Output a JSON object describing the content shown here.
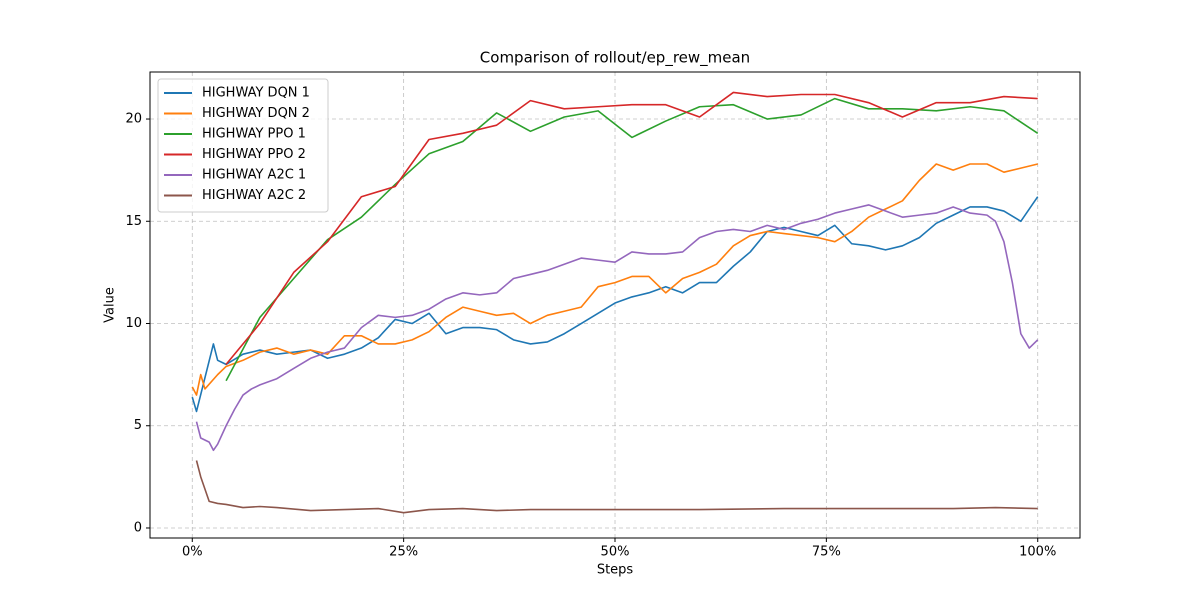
{
  "chart_data": {
    "type": "line",
    "title": "Comparison of rollout/ep_rew_mean",
    "x_label": "Steps",
    "y_label": "Value",
    "xlim": [
      -5,
      105
    ],
    "ylim": [
      -0.49,
      22.3
    ],
    "xticks": [
      {
        "value": 0,
        "label": "0%"
      },
      {
        "value": 25,
        "label": "25%"
      },
      {
        "value": 50,
        "label": "50%"
      },
      {
        "value": 75,
        "label": "75%"
      },
      {
        "value": 100,
        "label": "100%"
      }
    ],
    "yticks": [
      0,
      5,
      10,
      15,
      20
    ],
    "grid": true,
    "legend": "upper-left",
    "series": [
      {
        "name": "HIGHWAY DQN 1",
        "color": "#1f77b4",
        "x": [
          0,
          0.5,
          2.5,
          3,
          4,
          6,
          8,
          10,
          12,
          14,
          16,
          18,
          20,
          22,
          24,
          26,
          28,
          30,
          32,
          34,
          36,
          38,
          40,
          42,
          44,
          46,
          48,
          50,
          52,
          54,
          56,
          58,
          60,
          62,
          64,
          66,
          68,
          70,
          72,
          74,
          76,
          78,
          80,
          82,
          84,
          86,
          88,
          90,
          92,
          94,
          96,
          98,
          100
        ],
        "values": [
          6.4,
          5.7,
          9.0,
          8.2,
          8.0,
          8.5,
          8.7,
          8.5,
          8.6,
          8.7,
          8.3,
          8.5,
          8.8,
          9.3,
          10.2,
          10.0,
          10.5,
          9.5,
          9.8,
          9.8,
          9.7,
          9.2,
          9.0,
          9.1,
          9.5,
          10.0,
          10.5,
          11.0,
          11.3,
          11.5,
          11.8,
          11.5,
          12.0,
          12.0,
          12.8,
          13.5,
          14.5,
          14.7,
          14.5,
          14.3,
          14.8,
          13.9,
          13.8,
          13.6,
          13.8,
          14.2,
          14.9,
          15.3,
          15.7,
          15.7,
          15.5,
          15.0,
          16.2
        ]
      },
      {
        "name": "HIGHWAY DQN 2",
        "color": "#ff7f0e",
        "x": [
          0,
          0.5,
          1,
          1.5,
          3,
          4,
          6,
          8,
          10,
          12,
          14,
          16,
          18,
          20,
          22,
          24,
          26,
          28,
          30,
          32,
          34,
          36,
          38,
          40,
          42,
          44,
          46,
          48,
          50,
          52,
          54,
          56,
          58,
          60,
          62,
          64,
          66,
          68,
          70,
          72,
          74,
          76,
          78,
          80,
          82,
          84,
          86,
          88,
          90,
          92,
          94,
          96,
          98,
          100
        ],
        "values": [
          6.9,
          6.5,
          7.5,
          6.8,
          7.5,
          7.9,
          8.2,
          8.6,
          8.8,
          8.5,
          8.7,
          8.5,
          9.4,
          9.4,
          9.0,
          9.0,
          9.2,
          9.6,
          10.3,
          10.8,
          10.6,
          10.4,
          10.5,
          10.0,
          10.4,
          10.6,
          10.8,
          11.8,
          12.0,
          12.3,
          12.3,
          11.5,
          12.2,
          12.5,
          12.9,
          13.8,
          14.3,
          14.5,
          14.4,
          14.3,
          14.2,
          14.0,
          14.5,
          15.2,
          15.6,
          16.0,
          17.0,
          17.8,
          17.5,
          17.8,
          17.8,
          17.4,
          17.6,
          17.8
        ]
      },
      {
        "name": "HIGHWAY PPO 1",
        "color": "#2ca02c",
        "x": [
          4,
          8,
          12,
          16,
          20,
          24,
          28,
          32,
          36,
          40,
          44,
          48,
          52,
          56,
          60,
          64,
          68,
          72,
          76,
          80,
          84,
          88,
          92,
          96,
          100
        ],
        "values": [
          7.2,
          10.3,
          12.2,
          14.1,
          15.2,
          16.8,
          18.3,
          18.9,
          20.3,
          19.4,
          20.1,
          20.4,
          19.1,
          19.9,
          20.6,
          20.7,
          20.0,
          20.2,
          21.0,
          20.5,
          20.5,
          20.4,
          20.6,
          20.4,
          19.3
        ]
      },
      {
        "name": "HIGHWAY PPO 2",
        "color": "#d62728",
        "x": [
          4,
          8,
          12,
          16,
          20,
          24,
          28,
          32,
          36,
          40,
          44,
          48,
          52,
          56,
          60,
          64,
          68,
          72,
          76,
          80,
          84,
          88,
          92,
          96,
          100
        ],
        "values": [
          8.0,
          10.0,
          12.5,
          14.0,
          16.2,
          16.7,
          19.0,
          19.3,
          19.7,
          20.9,
          20.5,
          20.6,
          20.7,
          20.7,
          20.1,
          21.3,
          21.1,
          21.2,
          21.2,
          20.8,
          20.1,
          20.8,
          20.8,
          21.1,
          21.0
        ]
      },
      {
        "name": "HIGHWAY A2C 1",
        "color": "#9467bd",
        "x": [
          0.5,
          1,
          2,
          2.5,
          3,
          4,
          5,
          6,
          7,
          8,
          10,
          12,
          14,
          16,
          18,
          20,
          22,
          24,
          26,
          28,
          30,
          32,
          34,
          36,
          38,
          40,
          42,
          44,
          46,
          48,
          50,
          52,
          54,
          56,
          58,
          60,
          62,
          64,
          66,
          68,
          70,
          72,
          74,
          76,
          78,
          80,
          82,
          84,
          86,
          88,
          90,
          92,
          94,
          95,
          96,
          97,
          98,
          99,
          100
        ],
        "values": [
          5.2,
          4.4,
          4.2,
          3.8,
          4.1,
          5.0,
          5.8,
          6.5,
          6.8,
          7.0,
          7.3,
          7.8,
          8.3,
          8.6,
          8.8,
          9.8,
          10.4,
          10.3,
          10.4,
          10.7,
          11.2,
          11.5,
          11.4,
          11.5,
          12.2,
          12.4,
          12.6,
          12.9,
          13.2,
          13.1,
          13.0,
          13.5,
          13.4,
          13.4,
          13.5,
          14.2,
          14.5,
          14.6,
          14.5,
          14.8,
          14.6,
          14.9,
          15.1,
          15.4,
          15.6,
          15.8,
          15.5,
          15.2,
          15.3,
          15.4,
          15.7,
          15.4,
          15.3,
          15.0,
          14.0,
          12.0,
          9.5,
          8.8,
          9.2
        ]
      },
      {
        "name": "HIGHWAY A2C 2",
        "color": "#8c564b",
        "x": [
          0.5,
          1,
          2,
          3,
          4,
          6,
          8,
          10,
          14,
          18,
          22,
          25,
          28,
          32,
          36,
          40,
          50,
          60,
          70,
          80,
          90,
          95,
          100
        ],
        "values": [
          3.3,
          2.5,
          1.3,
          1.2,
          1.15,
          1.0,
          1.05,
          1.0,
          0.85,
          0.9,
          0.95,
          0.75,
          0.9,
          0.95,
          0.85,
          0.9,
          0.9,
          0.9,
          0.95,
          0.95,
          0.95,
          1.0,
          0.95
        ]
      }
    ]
  }
}
